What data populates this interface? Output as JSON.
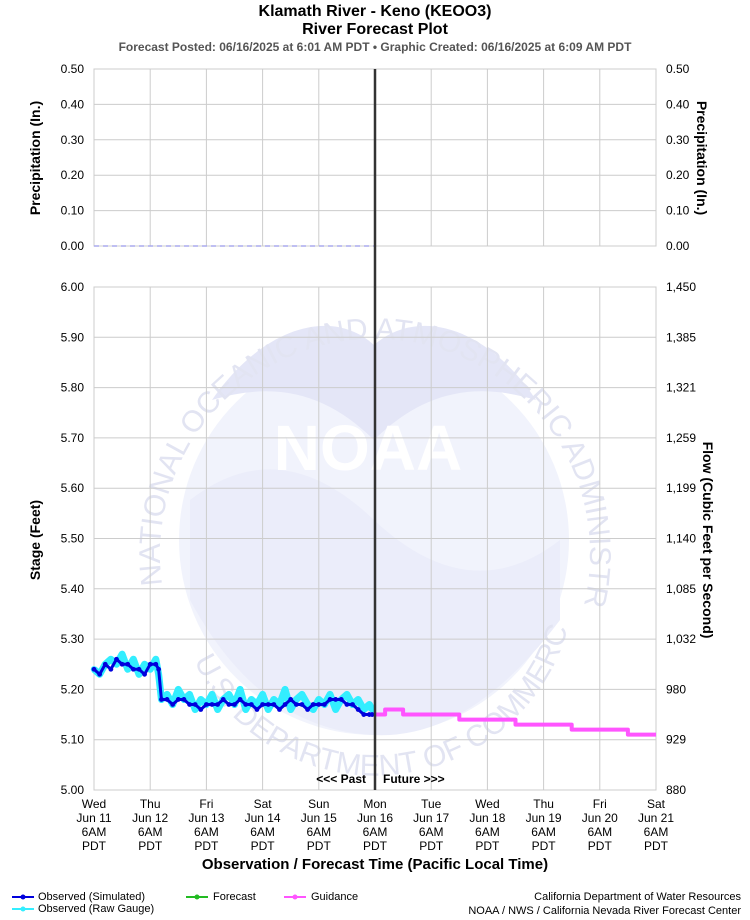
{
  "header": {
    "title_line1": "Klamath River - Keno (KEOO3)",
    "title_line2": "River Forecast Plot",
    "subtitle": "Forecast Posted: 06/16/2025 at 6:01 AM PDT  •  Graphic Created: 06/16/2025 at 6:09 AM PDT"
  },
  "chart_data": [
    {
      "type": "line",
      "name": "precipitation-panel",
      "ylabel_left": "Precipitation (In.)",
      "ylabel_right": "Precipitation (In.)",
      "ylim": [
        0,
        0.5
      ],
      "yticks": [
        "0.00",
        "0.10",
        "0.20",
        "0.30",
        "0.40",
        "0.50"
      ],
      "grid": true,
      "series": [
        {
          "color": "#aaaaee",
          "style": "dashed",
          "x_start": 0,
          "x_end": 5,
          "value": 0.0
        }
      ]
    },
    {
      "type": "line",
      "name": "stage-flow-panel",
      "xlabel": "Observation / Forecast Time (Pacific Local Time)",
      "ylabel_left": "Stage (Feet)",
      "ylabel_right": "Flow (Cubic Feet per Second)",
      "ylim": [
        5.0,
        6.0
      ],
      "yticks_left": [
        "5.00",
        "5.10",
        "5.20",
        "5.30",
        "5.40",
        "5.50",
        "5.60",
        "5.70",
        "5.80",
        "5.90",
        "6.00"
      ],
      "yticks_right": [
        "880",
        "929",
        "980",
        "1,032",
        "1,085",
        "1,140",
        "1,199",
        "1,259",
        "1,321",
        "1,385",
        "1,450"
      ],
      "x_categories": [
        [
          "Wed",
          "Jun 11",
          "6AM",
          "PDT"
        ],
        [
          "Thu",
          "Jun 12",
          "6AM",
          "PDT"
        ],
        [
          "Fri",
          "Jun 13",
          "6AM",
          "PDT"
        ],
        [
          "Sat",
          "Jun 14",
          "6AM",
          "PDT"
        ],
        [
          "Sun",
          "Jun 15",
          "6AM",
          "PDT"
        ],
        [
          "Mon",
          "Jun 16",
          "6AM",
          "PDT"
        ],
        [
          "Tue",
          "Jun 17",
          "6AM",
          "PDT"
        ],
        [
          "Wed",
          "Jun 18",
          "6AM",
          "PDT"
        ],
        [
          "Thu",
          "Jun 19",
          "6AM",
          "PDT"
        ],
        [
          "Fri",
          "Jun 20",
          "6AM",
          "PDT"
        ],
        [
          "Sat",
          "Jun 21",
          "6AM",
          "PDT"
        ]
      ],
      "grid": true,
      "past_label": "<<< Past",
      "future_label": "Future >>>",
      "series": [
        {
          "name": "Observed (Raw Gauge)",
          "color": "#33eeff",
          "x": [
            0.0,
            0.1,
            0.2,
            0.3,
            0.4,
            0.5,
            0.6,
            0.7,
            0.8,
            0.9,
            1.0,
            1.1,
            1.15,
            1.2,
            1.3,
            1.4,
            1.5,
            1.6,
            1.7,
            1.8,
            1.9,
            2.0,
            2.1,
            2.2,
            2.3,
            2.4,
            2.5,
            2.6,
            2.7,
            2.8,
            2.9,
            3.0,
            3.1,
            3.2,
            3.3,
            3.4,
            3.5,
            3.6,
            3.7,
            3.8,
            3.9,
            4.0,
            4.1,
            4.2,
            4.3,
            4.4,
            4.5,
            4.6,
            4.7,
            4.8,
            4.9,
            4.95
          ],
          "y": [
            5.24,
            5.23,
            5.25,
            5.26,
            5.25,
            5.27,
            5.24,
            5.26,
            5.23,
            5.25,
            5.24,
            5.26,
            5.23,
            5.18,
            5.19,
            5.17,
            5.2,
            5.18,
            5.19,
            5.16,
            5.18,
            5.17,
            5.19,
            5.16,
            5.18,
            5.19,
            5.17,
            5.2,
            5.16,
            5.18,
            5.17,
            5.19,
            5.16,
            5.18,
            5.17,
            5.2,
            5.16,
            5.18,
            5.19,
            5.17,
            5.16,
            5.18,
            5.17,
            5.19,
            5.16,
            5.18,
            5.19,
            5.17,
            5.18,
            5.16,
            5.17,
            5.16
          ]
        },
        {
          "name": "Observed (Simulated)",
          "color": "#0000dd",
          "x": [
            0.0,
            0.1,
            0.2,
            0.3,
            0.4,
            0.5,
            0.6,
            0.7,
            0.8,
            0.9,
            1.0,
            1.1,
            1.15,
            1.2,
            1.3,
            1.4,
            1.5,
            1.6,
            1.7,
            1.8,
            1.9,
            2.0,
            2.1,
            2.2,
            2.3,
            2.4,
            2.5,
            2.6,
            2.7,
            2.8,
            2.9,
            3.0,
            3.1,
            3.2,
            3.3,
            3.4,
            3.5,
            3.6,
            3.7,
            3.8,
            3.9,
            4.0,
            4.1,
            4.2,
            4.3,
            4.4,
            4.5,
            4.6,
            4.7,
            4.8,
            4.9,
            4.95
          ],
          "y": [
            5.24,
            5.23,
            5.25,
            5.24,
            5.26,
            5.25,
            5.25,
            5.24,
            5.24,
            5.23,
            5.25,
            5.25,
            5.24,
            5.18,
            5.18,
            5.17,
            5.18,
            5.18,
            5.17,
            5.17,
            5.16,
            5.17,
            5.17,
            5.17,
            5.18,
            5.17,
            5.17,
            5.18,
            5.17,
            5.17,
            5.16,
            5.17,
            5.17,
            5.17,
            5.16,
            5.17,
            5.18,
            5.17,
            5.17,
            5.16,
            5.17,
            5.17,
            5.17,
            5.18,
            5.18,
            5.18,
            5.17,
            5.17,
            5.16,
            5.15,
            5.15,
            5.15
          ]
        },
        {
          "name": "Forecast",
          "color": "#22bb22",
          "x": [],
          "y": []
        },
        {
          "name": "Guidance",
          "color": "#ff55ff",
          "x": [
            5.0,
            5.18,
            5.18,
            5.5,
            5.5,
            6.5,
            6.5,
            7.5,
            7.5,
            8.5,
            8.5,
            9.5,
            9.5,
            10.0
          ],
          "y": [
            5.15,
            5.15,
            5.16,
            5.16,
            5.15,
            5.15,
            5.14,
            5.14,
            5.13,
            5.13,
            5.12,
            5.12,
            5.11,
            5.11
          ]
        }
      ]
    }
  ],
  "legend": {
    "observed_simulated": "Observed (Simulated)",
    "observed_raw": "Observed (Raw Gauge)",
    "forecast": "Forecast",
    "guidance": "Guidance"
  },
  "credits": {
    "line1": "California Department of Water Resources",
    "line2": "NOAA / NWS / California Nevada River Forecast Center"
  },
  "watermark": {
    "logo_text": "NOAA",
    "ring_text_top": "NATIONAL OCEANIC AND ATMOSPHERIC ADMINISTRATION",
    "ring_text_bottom": "U.S. DEPARTMENT OF COMMERCE"
  },
  "colors": {
    "grid": "#cccccc",
    "now_line": "#333333",
    "watermark": "#e4e6f7"
  }
}
